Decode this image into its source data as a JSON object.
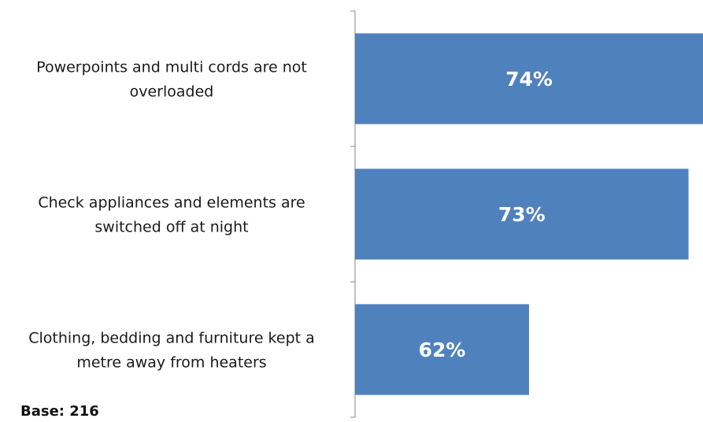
{
  "chart_data": {
    "type": "bar",
    "orientation": "horizontal",
    "categories": [
      [
        "Powerpoints and multi cords are not",
        "overloaded"
      ],
      [
        "Check appliances and elements are",
        "switched off at night"
      ],
      [
        "Clothing, bedding and furniture kept a",
        "metre away from heaters"
      ]
    ],
    "values": [
      74,
      73,
      62
    ],
    "data_labels": [
      "74%",
      "73%",
      "62%"
    ],
    "bar_color": "#4f81bd",
    "xlim": [
      50,
      74
    ],
    "grid": false,
    "legend": "none"
  },
  "footnote": "Base: 216"
}
